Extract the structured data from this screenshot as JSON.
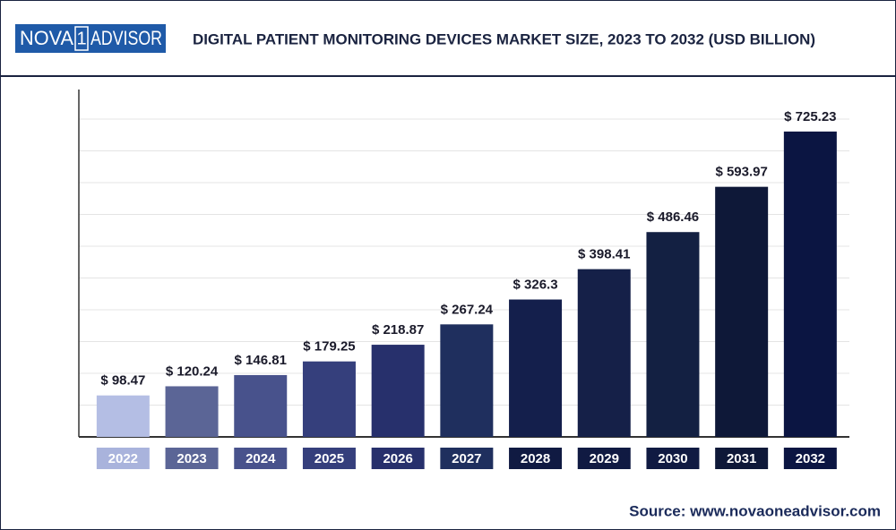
{
  "logo": {
    "left": "NOVA",
    "mid": "1",
    "right": "ADVISOR"
  },
  "chart_data": {
    "type": "bar",
    "title": "DIGITAL PATIENT MONITORING DEVICES MARKET SIZE, 2023 TO 2032 (USD BILLION)",
    "categories": [
      "2022",
      "2023",
      "2024",
      "2025",
      "2026",
      "2027",
      "2028",
      "2029",
      "2030",
      "2031",
      "2032"
    ],
    "values": [
      98.47,
      120.24,
      146.81,
      179.25,
      218.87,
      267.24,
      326.3,
      398.41,
      486.46,
      593.97,
      725.23
    ],
    "value_labels": [
      "$ 98.47",
      "$ 120.24",
      "$ 146.81",
      "$ 179.25",
      "$ 218.87",
      "$ 267.24",
      "$ 326.3",
      "$ 398.41",
      "$ 486.46",
      "$ 593.97",
      "$ 725.23"
    ],
    "colors": [
      "#b4bee4",
      "#5b6596",
      "#48528c",
      "#353f7c",
      "#27306c",
      "#1f2f5e",
      "#141f4c",
      "#152048",
      "#132042",
      "#0e1838",
      "#0b1542"
    ],
    "label_colors": [
      "#a9b3dc",
      "#5b6596",
      "#48528c",
      "#353f7c",
      "#27306c",
      "#1f2f5e",
      "#101a42",
      "#101a42",
      "#101a42",
      "#0e1838",
      "#0b1542"
    ],
    "ylim": [
      0,
      825
    ],
    "source": "Source: www.novaoneadvisor.com"
  }
}
